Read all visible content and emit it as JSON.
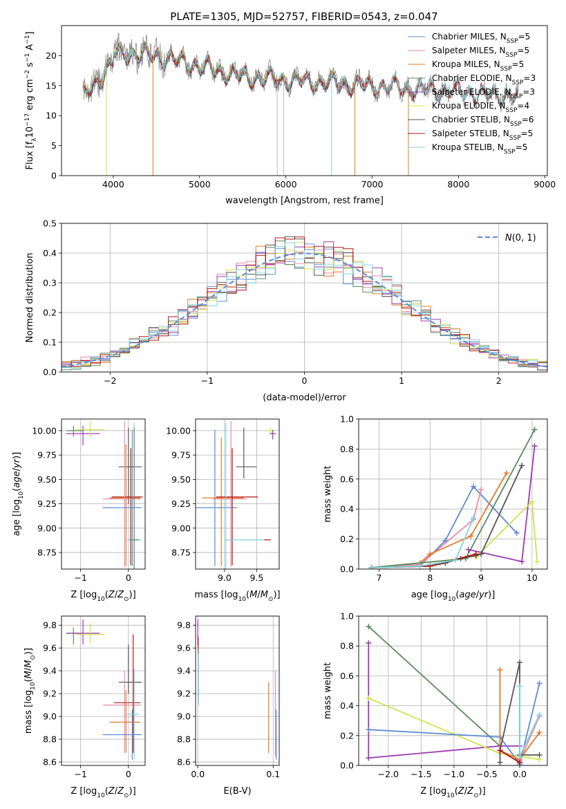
{
  "figure": {
    "title": "PLATE=1305, MJD=52757, FIBERID=0543, z=0.047"
  },
  "colors": {
    "Chabrier MILES": "#5b8bd6",
    "Salpeter MILES": "#e88aa6",
    "Kroupa MILES": "#e07a28",
    "Chabrier ELODIE": "#5a8a5e",
    "Salpeter ELODIE": "#9a3ab0",
    "Kroupa ELODIE": "#cfe34d",
    "Chabrier STELIB": "#555555",
    "Salpeter STELIB": "#b01515",
    "Kroupa STELIB": "#7fd3dc"
  },
  "chart_data": [
    {
      "id": "spectrum",
      "type": "line",
      "title": "PLATE=1305, MJD=52757, FIBERID=0543, z=0.047",
      "xlabel": "wavelength [Angstrom, rest frame]",
      "ylabel": "Flux [f_λ 10^-17 erg cm^-2 s^-1 A^-1]",
      "xlim": [
        3400,
        9030
      ],
      "ylim": [
        0,
        25
      ],
      "xticks": [
        4000,
        5000,
        6000,
        7000,
        8000,
        9000
      ],
      "yticks": [
        0,
        5,
        10,
        15,
        20
      ],
      "legend": "top-right",
      "data_series": {
        "name": "data",
        "color": "#888888"
      },
      "series": [
        {
          "name": "Chabrier MILES",
          "nssp": 5,
          "x_range": [
            3650,
            7430
          ]
        },
        {
          "name": "Salpeter MILES",
          "nssp": 5,
          "x_range": [
            3650,
            7430
          ]
        },
        {
          "name": "Kroupa MILES",
          "nssp": 5,
          "x_range": [
            3650,
            7430
          ]
        },
        {
          "name": "Chabrier ELODIE",
          "nssp": 3,
          "x_range": [
            3650,
            6800
          ]
        },
        {
          "name": "Salpeter ELODIE",
          "nssp": 3,
          "x_range": [
            3650,
            6800
          ]
        },
        {
          "name": "Kroupa ELODIE",
          "nssp": 4,
          "x_range": [
            3650,
            6800
          ]
        },
        {
          "name": "Chabrier STELIB",
          "nssp": 6,
          "x_range": [
            3650,
            8700
          ]
        },
        {
          "name": "Salpeter STELIB",
          "nssp": 5,
          "x_range": [
            3650,
            8700
          ]
        },
        {
          "name": "Kroupa STELIB",
          "nssp": 5,
          "x_range": [
            3650,
            8700
          ]
        }
      ],
      "legend_entries": [
        {
          "text": "Chabrier MILES, N",
          "sub": "SSP",
          "tail": "=5"
        },
        {
          "text": "Salpeter MILES, N",
          "sub": "SSP",
          "tail": "=5"
        },
        {
          "text": "Kroupa MILES, N",
          "sub": "SSP",
          "tail": "=5"
        },
        {
          "text": "Chabrier ELODIE, N",
          "sub": "SSP",
          "tail": "=3"
        },
        {
          "text": "Salpeter ELODIE, N",
          "sub": "SSP",
          "tail": "=3"
        },
        {
          "text": "Kroupa ELODIE, N",
          "sub": "SSP",
          "tail": "=4"
        },
        {
          "text": "Chabrier STELIB, N",
          "sub": "SSP",
          "tail": "=6"
        },
        {
          "text": "Salpeter STELIB, N",
          "sub": "SSP",
          "tail": "=5"
        },
        {
          "text": "Kroupa STELIB, N",
          "sub": "SSP",
          "tail": "=5"
        }
      ]
    },
    {
      "id": "residuals",
      "type": "line",
      "xlabel": "(data-model)/error",
      "ylabel": "Normed distribution",
      "xlim": [
        -2.5,
        2.5
      ],
      "ylim": [
        0,
        0.5
      ],
      "xticks": [
        -2,
        -1,
        0,
        1,
        2
      ],
      "yticks": [
        0.0,
        0.1,
        0.2,
        0.3,
        0.4,
        0.5
      ],
      "grid": true,
      "legend": "top-right",
      "gaussian": {
        "name": "N(0,1)",
        "color": "#5b8bd6",
        "mean": 0,
        "sigma": 1
      },
      "bin_width": 0.1
    },
    {
      "id": "age-vs-Z",
      "type": "scatter",
      "xlabel": "Z [log10(Z/Z☉)]",
      "ylabel": "age [log10(age/yr)]",
      "xlim": [
        -1.4,
        0.35
      ],
      "ylim": [
        8.58,
        10.12
      ],
      "xticks": [
        -1,
        0
      ],
      "yticks": [
        8.75,
        9.0,
        9.25,
        9.5,
        9.75,
        10.0
      ],
      "grid": true,
      "points": [
        {
          "s": "Chabrier ELODIE",
          "x": -1.15,
          "y": 10.0,
          "xerr": [
            0.15,
            0.2
          ],
          "yerr": [
            0.06,
            0.05
          ]
        },
        {
          "s": "Salpeter ELODIE",
          "x": -0.95,
          "y": 9.97,
          "xerr": [
            0.35,
            0.35
          ],
          "yerr": [
            0.12,
            0.08
          ]
        },
        {
          "s": "Kroupa ELODIE",
          "x": -0.8,
          "y": 10.01,
          "xerr": [
            0.3,
            0.3
          ],
          "yerr": [
            0.08,
            0.09
          ]
        },
        {
          "s": "Chabrier STELIB",
          "x": 0.0,
          "y": 9.63,
          "xerr": [
            0.2,
            0.28
          ],
          "yerr": [
            0.38,
            0.4
          ]
        },
        {
          "s": "Kroupa MILES",
          "x": -0.05,
          "y": 9.31,
          "xerr": [
            0.35,
            0.3
          ],
          "yerr": [
            0.7,
            0.55
          ]
        },
        {
          "s": "Salpeter STELIB",
          "x": 0.05,
          "y": 9.32,
          "xerr": [
            0.4,
            0.25
          ],
          "yerr": [
            0.7,
            0.5
          ]
        },
        {
          "s": "Salpeter MILES",
          "x": -0.08,
          "y": 9.3,
          "xerr": [
            0.45,
            0.35
          ],
          "yerr": [
            0.7,
            0.8
          ]
        },
        {
          "s": "Chabrier MILES",
          "x": 0.08,
          "y": 9.21,
          "xerr": [
            0.62,
            0.2
          ],
          "yerr": [
            0.6,
            0.8
          ]
        },
        {
          "s": "Kroupa STELIB",
          "x": 0.12,
          "y": 8.88,
          "xerr": [
            0.15,
            0.15
          ],
          "yerr": [
            0.35,
            1.2
          ]
        },
        {
          "s": "Chabrier ELODIE",
          "x": 0.12,
          "y": 8.88,
          "xerr": [
            0.1,
            0.1
          ],
          "yerr": [
            0.3,
            1.15
          ]
        }
      ]
    },
    {
      "id": "age-vs-mass",
      "type": "scatter",
      "xlabel": "mass [log10(M/M☉)]",
      "ylabel": "",
      "xlim": [
        8.55,
        9.85
      ],
      "ylim": [
        8.58,
        10.12
      ],
      "xticks": [
        9.0,
        9.5
      ],
      "yticks": [
        8.75,
        9.0,
        9.25,
        9.5,
        9.75,
        10.0
      ],
      "grid": true,
      "points": [
        {
          "s": "Kroupa ELODIE",
          "x": 9.72,
          "y": 10.0,
          "xerr": [
            0.08,
            0.05
          ],
          "yerr": [
            0.03,
            0.03
          ]
        },
        {
          "s": "Salpeter ELODIE",
          "x": 9.75,
          "y": 9.97,
          "xerr": [
            0.05,
            0.05
          ],
          "yerr": [
            0.06,
            0.04
          ]
        },
        {
          "s": "Chabrier STELIB",
          "x": 9.3,
          "y": 9.63,
          "xerr": [
            0.12,
            0.2
          ],
          "yerr": [
            0.12,
            0.4
          ]
        },
        {
          "s": "Chabrier MILES",
          "x": 8.85,
          "y": 9.21,
          "xerr": [
            0.3,
            0.35
          ],
          "yerr": [
            0.6,
            0.8
          ]
        },
        {
          "s": "Kroupa MILES",
          "x": 8.95,
          "y": 9.31,
          "xerr": [
            0.3,
            0.35
          ],
          "yerr": [
            0.7,
            0.62
          ]
        },
        {
          "s": "Salpeter MILES",
          "x": 9.1,
          "y": 9.3,
          "xerr": [
            0.28,
            0.25
          ],
          "yerr": [
            0.7,
            0.8
          ]
        },
        {
          "s": "Salpeter STELIB",
          "x": 9.12,
          "y": 9.32,
          "xerr": [
            0.25,
            0.4
          ],
          "yerr": [
            0.7,
            0.5
          ]
        },
        {
          "s": "Kroupa STELIB",
          "x": 9.02,
          "y": 8.88,
          "xerr": [
            0.02,
            0.62
          ],
          "yerr": [
            0.3,
            1.2
          ]
        },
        {
          "s": "Salpeter STELIB",
          "x": 9.7,
          "y": 8.88,
          "xerr": [
            0.08,
            0.02
          ],
          "yerr": [
            0.0,
            0.0
          ]
        }
      ]
    },
    {
      "id": "weight-vs-age",
      "type": "line",
      "xlabel": "age [log10(age/yr)]",
      "ylabel": "mass weight",
      "xlim": [
        6.6,
        10.3
      ],
      "ylim": [
        0,
        1.0
      ],
      "xticks": [
        7,
        8,
        9,
        10
      ],
      "yticks": [
        0.0,
        0.2,
        0.4,
        0.6,
        0.8,
        1.0
      ],
      "grid": true,
      "series": [
        {
          "s": "Chabrier MILES",
          "x": [
            6.85,
            7.8,
            8.3,
            8.85,
            9.7
          ],
          "y": [
            0.01,
            0.02,
            0.19,
            0.55,
            0.24
          ]
        },
        {
          "s": "Salpeter MILES",
          "x": [
            6.85,
            7.8,
            8.85,
            9.0
          ],
          "y": [
            0.01,
            0.03,
            0.33,
            0.53
          ]
        },
        {
          "s": "Kroupa MILES",
          "x": [
            6.85,
            7.8,
            8.0,
            8.8,
            9.5
          ],
          "y": [
            0.01,
            0.04,
            0.1,
            0.22,
            0.64
          ]
        },
        {
          "s": "Chabrier ELODIE",
          "x": [
            6.85,
            8.7,
            10.05
          ],
          "y": [
            0.01,
            0.07,
            0.93
          ]
        },
        {
          "s": "Salpeter ELODIE",
          "x": [
            8.75,
            9.8,
            10.05
          ],
          "y": [
            0.13,
            0.05,
            0.82
          ]
        },
        {
          "s": "Kroupa ELODIE",
          "x": [
            8.9,
            10.0,
            10.1
          ],
          "y": [
            0.08,
            0.45,
            0.05
          ]
        },
        {
          "s": "Chabrier STELIB",
          "x": [
            6.85,
            8.0,
            8.3,
            8.6,
            8.9,
            9.0,
            9.8
          ],
          "y": [
            0.01,
            0.02,
            0.04,
            0.07,
            0.09,
            0.1,
            0.69
          ]
        },
        {
          "s": "Salpeter STELIB",
          "x": [
            6.85,
            8.0,
            8.9
          ],
          "y": [
            0.01,
            0.02,
            0.1
          ]
        },
        {
          "s": "Kroupa STELIB",
          "x": [
            6.85,
            7.8,
            8.5,
            8.85
          ],
          "y": [
            0.01,
            0.02,
            0.06,
            0.34
          ]
        }
      ]
    },
    {
      "id": "mass-vs-Z",
      "type": "scatter",
      "xlabel": "Z [log10(Z/Z☉)]",
      "ylabel": "mass [log10(M/M☉)]",
      "xlim": [
        -1.4,
        0.35
      ],
      "ylim": [
        8.57,
        9.88
      ],
      "xticks": [
        -1,
        0
      ],
      "yticks": [
        8.6,
        8.8,
        9.0,
        9.2,
        9.4,
        9.6,
        9.8
      ],
      "grid": true,
      "points": [
        {
          "s": "Chabrier ELODIE",
          "x": -1.15,
          "y": 9.73,
          "xerr": [
            0.15,
            0.2
          ],
          "yerr": [
            0.1,
            0.05
          ]
        },
        {
          "s": "Salpeter ELODIE",
          "x": -0.95,
          "y": 9.73,
          "xerr": [
            0.35,
            0.35
          ],
          "yerr": [
            0.1,
            0.12
          ]
        },
        {
          "s": "Kroupa ELODIE",
          "x": -0.8,
          "y": 9.72,
          "xerr": [
            0.3,
            0.3
          ],
          "yerr": [
            0.08,
            0.1
          ]
        },
        {
          "s": "Chabrier STELIB",
          "x": 0.0,
          "y": 9.3,
          "xerr": [
            0.2,
            0.28
          ],
          "yerr": [
            0.1,
            0.33
          ]
        },
        {
          "s": "Salpeter MILES",
          "x": -0.08,
          "y": 9.1,
          "xerr": [
            0.45,
            0.35
          ],
          "yerr": [
            0.42,
            0.3
          ]
        },
        {
          "s": "Salpeter STELIB",
          "x": 0.1,
          "y": 9.12,
          "xerr": [
            0.4,
            0.15
          ],
          "yerr": [
            0.44,
            0.6
          ]
        },
        {
          "s": "Kroupa STELIB",
          "x": 0.12,
          "y": 9.02,
          "xerr": [
            0.15,
            0.1
          ],
          "yerr": [
            0.4,
            0.4
          ]
        },
        {
          "s": "Kroupa MILES",
          "x": -0.05,
          "y": 8.95,
          "xerr": [
            0.35,
            0.3
          ],
          "yerr": [
            0.27,
            0.28
          ]
        },
        {
          "s": "Chabrier MILES",
          "x": 0.08,
          "y": 8.84,
          "xerr": [
            0.62,
            0.2
          ],
          "yerr": [
            0.22,
            0.22
          ]
        }
      ]
    },
    {
      "id": "mass-vs-EBV",
      "type": "scatter",
      "xlabel": "E(B-V)",
      "ylabel": "",
      "xlim": [
        -0.003,
        0.108
      ],
      "ylim": [
        8.57,
        9.88
      ],
      "xticks": [
        0.0,
        0.1
      ],
      "yticks": [
        8.6,
        8.8,
        9.0,
        9.2,
        9.4,
        9.6,
        9.8
      ],
      "grid": true,
      "points": [
        {
          "s": "Kroupa MILES",
          "x": 0.094,
          "y": 8.95,
          "xerr": [
            0,
            0
          ],
          "yerr": [
            0.27,
            0.35
          ]
        },
        {
          "s": "Salpeter MILES",
          "x": 0.103,
          "y": 9.1,
          "xerr": [
            0,
            0
          ],
          "yerr": [
            0.45,
            0.3
          ]
        },
        {
          "s": "Chabrier MILES",
          "x": 0.104,
          "y": 8.84,
          "xerr": [
            0,
            0
          ],
          "yerr": [
            0.22,
            0.22
          ]
        },
        {
          "s": "Salpeter ELODIE",
          "x": 0.0,
          "y": 9.73,
          "xerr": [
            0,
            0
          ],
          "yerr": [
            0.1,
            0.12
          ]
        },
        {
          "s": "Salpeter STELIB",
          "x": 0.0005,
          "y": 9.6,
          "xerr": [
            0,
            0
          ],
          "yerr": [
            0.05,
            0.1
          ]
        },
        {
          "s": "Kroupa STELIB",
          "x": 0.001,
          "y": 9.3,
          "xerr": [
            0,
            0
          ],
          "yerr": [
            0.2,
            0.3
          ]
        }
      ]
    },
    {
      "id": "weight-vs-Z",
      "type": "line",
      "xlabel": "Z [log10(Z/Z☉)]",
      "ylabel": "mass weight",
      "xlim": [
        -2.45,
        0.42
      ],
      "ylim": [
        0,
        1.0
      ],
      "xticks": [
        -2.0,
        -1.5,
        -1.0,
        -0.5,
        0.0
      ],
      "yticks": [
        0.0,
        0.2,
        0.4,
        0.6,
        0.8,
        1.0
      ],
      "grid": true,
      "series": [
        {
          "s": "Chabrier ELODIE",
          "x": [
            -2.3,
            -0.3
          ],
          "y": [
            0.93,
            0.13
          ]
        },
        {
          "s": "Salpeter ELODIE",
          "x": [
            -2.3,
            -2.3,
            -0.3,
            0.0
          ],
          "y": [
            0.82,
            0.05,
            0.13,
            0.13
          ]
        },
        {
          "s": "Kroupa ELODIE",
          "x": [
            -2.3,
            -0.3,
            0.3
          ],
          "y": [
            0.45,
            0.08,
            0.04
          ]
        },
        {
          "s": "Chabrier MILES",
          "x": [
            -2.3,
            -0.3,
            0.0,
            0.3
          ],
          "y": [
            0.24,
            0.19,
            0.01,
            0.55
          ]
        },
        {
          "s": "Kroupa MILES",
          "x": [
            -0.3,
            -0.3,
            0.0,
            0.3
          ],
          "y": [
            0.64,
            0.1,
            0.04,
            0.22
          ]
        },
        {
          "s": "Salpeter MILES",
          "x": [
            0.0,
            0.0,
            0.3
          ],
          "y": [
            0.53,
            0.03,
            0.33
          ]
        },
        {
          "s": "Chabrier STELIB",
          "x": [
            -0.3,
            -0.3,
            0.0,
            0.0,
            0.3
          ],
          "y": [
            0.02,
            0.1,
            0.69,
            0.07,
            0.07
          ]
        },
        {
          "s": "Salpeter STELIB",
          "x": [
            -0.3,
            0.0
          ],
          "y": [
            0.1,
            0.02
          ]
        },
        {
          "s": "Kroupa STELIB",
          "x": [
            0.0,
            0.0,
            0.3
          ],
          "y": [
            0.53,
            0.06,
            0.34
          ]
        }
      ]
    }
  ]
}
